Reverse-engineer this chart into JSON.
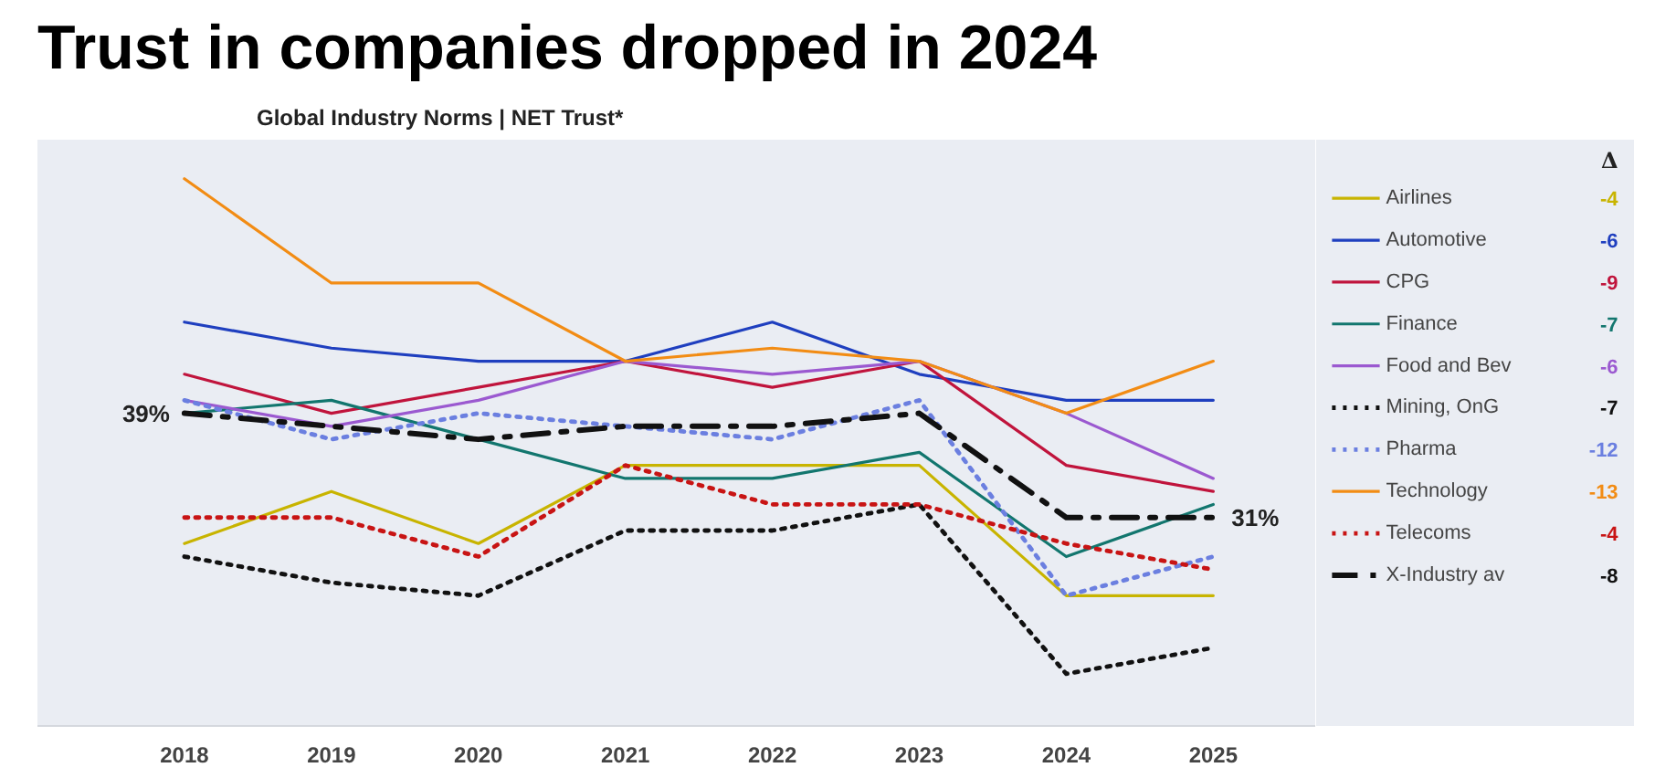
{
  "chart_data": {
    "type": "line",
    "title": "Trust in companies dropped in 2024",
    "subtitle": "Global Industry Norms | NET Trust*",
    "ylim": [
      15,
      60
    ],
    "tick_labels": "x",
    "legend": "right",
    "grid": false,
    "categories": [
      "2018",
      "2019",
      "2020",
      "2021",
      "2022",
      "2023",
      "2024",
      "2025"
    ],
    "annotations": [
      "Δ",
      "-4",
      "-6",
      "-9",
      "-7",
      "-6",
      "-7",
      "-12",
      "-13",
      "-4",
      "-8"
    ],
    "series": [
      {
        "name": "Airlines",
        "color": "#c8b400",
        "line_style": "solid",
        "values": [
          29,
          33,
          29,
          35,
          35,
          35,
          25,
          25
        ]
      },
      {
        "name": "Automotive",
        "color": "#1f3fbf",
        "line_style": "solid",
        "values": [
          46,
          44,
          43,
          43,
          46,
          42,
          40,
          40
        ]
      },
      {
        "name": "CPG",
        "color": "#c0143c",
        "line_style": "solid",
        "values": [
          42,
          39,
          41,
          43,
          41,
          43,
          35,
          33
        ]
      },
      {
        "name": "Finance",
        "color": "#12766e",
        "line_style": "solid",
        "values": [
          39,
          40,
          37,
          34,
          34,
          36,
          28,
          32
        ]
      },
      {
        "name": "Food and Bev",
        "color": "#9b59d0",
        "line_style": "solid",
        "values": [
          40,
          38,
          40,
          43,
          42,
          43,
          39,
          34
        ]
      },
      {
        "name": "Mining, OnG",
        "color": "#111111",
        "line_style": "dotted",
        "values": [
          28,
          26,
          25,
          30,
          30,
          32,
          19,
          21
        ]
      },
      {
        "name": "Pharma",
        "color": "#6b7fe0",
        "line_style": "dotted",
        "values": [
          40,
          37,
          39,
          38,
          37,
          40,
          25,
          28
        ]
      },
      {
        "name": "Technology",
        "color": "#f28c14",
        "line_style": "solid",
        "values": [
          57,
          49,
          49,
          43,
          44,
          43,
          39,
          43
        ]
      },
      {
        "name": "Telecoms",
        "color": "#c81414",
        "line_style": "dotted",
        "values": [
          31,
          31,
          28,
          35,
          32,
          32,
          29,
          27
        ]
      },
      {
        "name": "X-Industry av",
        "color": "#111111",
        "line_style": "dashed",
        "values": [
          39,
          38,
          37,
          38,
          38,
          39,
          31,
          31
        ],
        "value_labels": [
          "39%",
          null,
          null,
          null,
          null,
          null,
          null,
          "31%"
        ]
      }
    ]
  }
}
